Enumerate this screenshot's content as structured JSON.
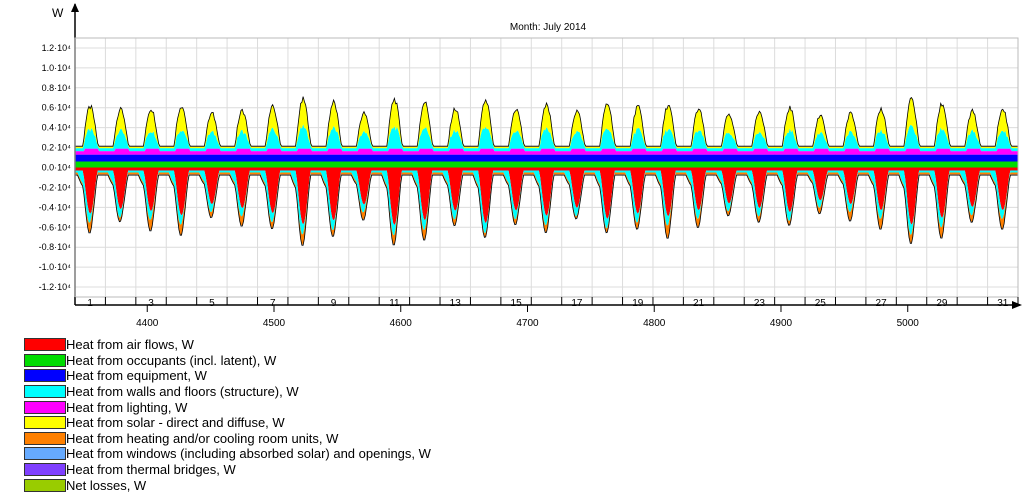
{
  "chart_data": {
    "type": "area",
    "title": "Month: July 2014",
    "ylabel": "W",
    "xlabel": "",
    "ylim": [
      -13000,
      13000
    ],
    "xlim": [
      4343,
      5087
    ],
    "y_ticks": [
      "1.2·10⁴",
      "1.0·10⁴",
      "0.8·10⁴",
      "0.6·10⁴",
      "0.4·10⁴",
      "0.2·10⁴",
      "0.0·10⁴",
      "-0.2·10⁴",
      "-0.4·10⁴",
      "-0.6·10⁴",
      "-0.8·10⁴",
      "-1.0·10⁴",
      "-1.2·10⁴"
    ],
    "y_tick_values": [
      12000,
      10000,
      8000,
      6000,
      4000,
      2000,
      0,
      -2000,
      -4000,
      -6000,
      -8000,
      -10000,
      -12000
    ],
    "day_ticks": [
      "1",
      "3",
      "5",
      "7",
      "9",
      "11",
      "13",
      "15",
      "17",
      "19",
      "21",
      "23",
      "25",
      "27",
      "29",
      "31"
    ],
    "x_ticks": [
      "4400",
      "4500",
      "4600",
      "4700",
      "4800",
      "4900",
      "5000"
    ],
    "x_tick_values": [
      4400,
      4500,
      4600,
      4700,
      4800,
      4900,
      5000
    ],
    "grid": true,
    "legend_position": "bottom-left",
    "series": [
      {
        "name": "Heat from air flows, W",
        "color": "#ff0000",
        "side": "negative",
        "typical_value": 3000,
        "peak_value": 7000
      },
      {
        "name": "Heat from occupants (incl. latent), W",
        "color": "#00dd00",
        "side": "positive",
        "typical_value": 500
      },
      {
        "name": "Heat from equipment, W",
        "color": "#0000ff",
        "side": "positive",
        "typical_value": 700
      },
      {
        "name": "Heat from walls and floors (structure), W",
        "color": "#00ffff",
        "side": "both",
        "typical_value": 2000,
        "peak_value": 3000
      },
      {
        "name": "Heat from lighting, W",
        "color": "#ff00ff",
        "side": "positive",
        "typical_value": 500
      },
      {
        "name": "Heat from solar - direct and diffuse, W",
        "color": "#ffff00",
        "side": "positive",
        "typical_value": 2000,
        "peak_value": 3500
      },
      {
        "name": "Heat from heating and/or cooling room units, W",
        "color": "#ff8000",
        "side": "negative",
        "typical_value": 1000,
        "peak_value": 2500
      },
      {
        "name": "Heat from windows (including absorbed solar) and openings, W",
        "color": "#66aaff",
        "side": "negative",
        "typical_value": 300
      },
      {
        "name": "Heat from thermal bridges, W",
        "color": "#7f3fff",
        "side": "positive",
        "typical_value": 100
      },
      {
        "name": "Net losses, W",
        "color": "#99cc00",
        "side": "positive",
        "typical_value": 50
      }
    ]
  }
}
